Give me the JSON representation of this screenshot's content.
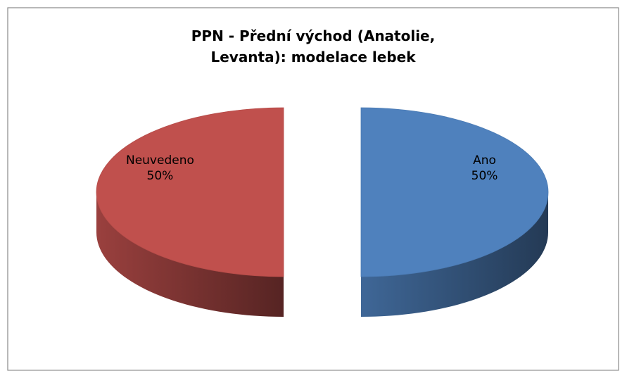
{
  "chart_data": {
    "type": "pie",
    "title": "PPN - Přední východ (Anatolie, Levanta): modelace lebek",
    "categories": [
      "Ano",
      "Neuvedeno"
    ],
    "values": [
      50,
      50
    ],
    "value_labels": [
      "50%",
      "50%"
    ],
    "colors": [
      "#4f81bd",
      "#c0504d"
    ],
    "three_d": true,
    "exploded": true
  }
}
